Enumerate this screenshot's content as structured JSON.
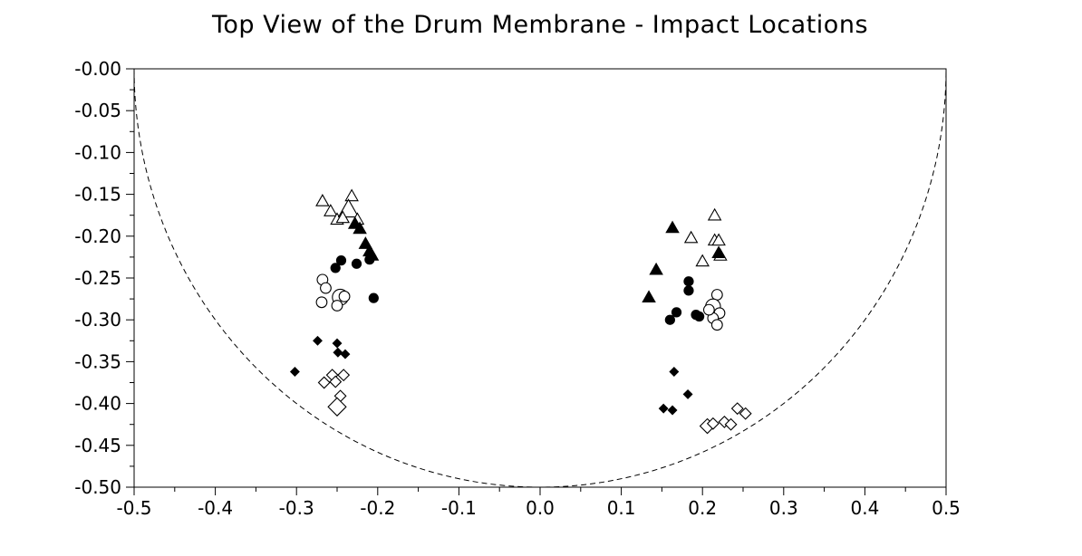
{
  "chart_data": {
    "type": "scatter",
    "title": "Top View of the Drum Membrane - Impact Locations",
    "xlabel": "",
    "ylabel": "",
    "xlim": [
      -0.5,
      0.5
    ],
    "ylim": [
      -0.5,
      0.0
    ],
    "grid": false,
    "x_ticks": [
      "-0.5",
      "-0.4",
      "-0.3",
      "-0.2",
      "-0.1",
      "0.0",
      "0.1",
      "0.2",
      "0.3",
      "0.4",
      "0.5"
    ],
    "y_ticks": [
      "-0.00",
      "-0.05",
      "-0.10",
      "-0.15",
      "-0.20",
      "-0.25",
      "-0.30",
      "-0.35",
      "-0.40",
      "-0.45",
      "-0.50"
    ],
    "boundary": {
      "shape": "semicircle",
      "center": [
        0,
        0
      ],
      "radius": 0.5,
      "style": "dashed"
    },
    "series": [
      {
        "marker": "triangle-open",
        "color": "#000000",
        "points": [
          {
            "x": -0.268,
            "y": -0.158,
            "s": 1
          },
          {
            "x": -0.258,
            "y": -0.17,
            "s": 1
          },
          {
            "x": -0.25,
            "y": -0.18,
            "s": 1
          },
          {
            "x": -0.232,
            "y": -0.152,
            "s": 1
          },
          {
            "x": -0.236,
            "y": -0.168,
            "s": 1.6
          },
          {
            "x": -0.225,
            "y": -0.18,
            "s": 1
          },
          {
            "x": -0.243,
            "y": -0.178,
            "s": 1
          },
          {
            "x": 0.215,
            "y": -0.175,
            "s": 1
          },
          {
            "x": 0.186,
            "y": -0.202,
            "s": 1
          },
          {
            "x": 0.215,
            "y": -0.205,
            "s": 1
          },
          {
            "x": 0.22,
            "y": -0.205,
            "s": 1
          },
          {
            "x": 0.2,
            "y": -0.23,
            "s": 1
          },
          {
            "x": 0.222,
            "y": -0.223,
            "s": 1
          }
        ]
      },
      {
        "marker": "triangle-filled",
        "color": "#000000",
        "points": [
          {
            "x": -0.228,
            "y": -0.185,
            "s": 1
          },
          {
            "x": -0.222,
            "y": -0.191,
            "s": 1
          },
          {
            "x": -0.215,
            "y": -0.209,
            "s": 1
          },
          {
            "x": -0.21,
            "y": -0.218,
            "s": 1
          },
          {
            "x": -0.207,
            "y": -0.223,
            "s": 1
          },
          {
            "x": 0.163,
            "y": -0.19,
            "s": 1
          },
          {
            "x": 0.143,
            "y": -0.24,
            "s": 1
          },
          {
            "x": 0.134,
            "y": -0.273,
            "s": 1
          },
          {
            "x": 0.22,
            "y": -0.22,
            "s": 1
          }
        ]
      },
      {
        "marker": "circle-filled",
        "color": "#000000",
        "points": [
          {
            "x": -0.245,
            "y": -0.229,
            "s": 1
          },
          {
            "x": -0.252,
            "y": -0.238,
            "s": 1
          },
          {
            "x": -0.226,
            "y": -0.233,
            "s": 1
          },
          {
            "x": -0.21,
            "y": -0.228,
            "s": 1
          },
          {
            "x": -0.205,
            "y": -0.274,
            "s": 1
          },
          {
            "x": 0.183,
            "y": -0.254,
            "s": 1
          },
          {
            "x": 0.183,
            "y": -0.265,
            "s": 1
          },
          {
            "x": 0.168,
            "y": -0.291,
            "s": 1
          },
          {
            "x": 0.16,
            "y": -0.3,
            "s": 1
          },
          {
            "x": 0.192,
            "y": -0.294,
            "s": 1
          },
          {
            "x": 0.196,
            "y": -0.296,
            "s": 1
          }
        ]
      },
      {
        "marker": "circle-open",
        "color": "#000000",
        "points": [
          {
            "x": -0.268,
            "y": -0.252,
            "s": 1
          },
          {
            "x": -0.264,
            "y": -0.262,
            "s": 1
          },
          {
            "x": -0.269,
            "y": -0.279,
            "s": 1
          },
          {
            "x": -0.246,
            "y": -0.273,
            "s": 1.5
          },
          {
            "x": -0.25,
            "y": -0.283,
            "s": 1
          },
          {
            "x": -0.241,
            "y": -0.272,
            "s": 1
          },
          {
            "x": 0.218,
            "y": -0.27,
            "s": 1
          },
          {
            "x": 0.213,
            "y": -0.284,
            "s": 1.4
          },
          {
            "x": 0.221,
            "y": -0.292,
            "s": 1
          },
          {
            "x": 0.213,
            "y": -0.298,
            "s": 1
          },
          {
            "x": 0.218,
            "y": -0.306,
            "s": 1
          },
          {
            "x": 0.208,
            "y": -0.288,
            "s": 1
          }
        ]
      },
      {
        "marker": "diamond-filled",
        "color": "#000000",
        "points": [
          {
            "x": -0.302,
            "y": -0.362,
            "s": 1
          },
          {
            "x": -0.274,
            "y": -0.325,
            "s": 1
          },
          {
            "x": -0.25,
            "y": -0.328,
            "s": 1
          },
          {
            "x": -0.249,
            "y": -0.339,
            "s": 1
          },
          {
            "x": -0.24,
            "y": -0.341,
            "s": 1
          },
          {
            "x": 0.165,
            "y": -0.362,
            "s": 1
          },
          {
            "x": 0.182,
            "y": -0.389,
            "s": 1
          },
          {
            "x": 0.152,
            "y": -0.406,
            "s": 1
          },
          {
            "x": 0.163,
            "y": -0.408,
            "s": 1
          }
        ]
      },
      {
        "marker": "diamond-open",
        "color": "#000000",
        "points": [
          {
            "x": -0.266,
            "y": -0.375,
            "s": 1
          },
          {
            "x": -0.256,
            "y": -0.366,
            "s": 1
          },
          {
            "x": -0.242,
            "y": -0.366,
            "s": 1
          },
          {
            "x": -0.252,
            "y": -0.374,
            "s": 1
          },
          {
            "x": -0.246,
            "y": -0.391,
            "s": 1
          },
          {
            "x": -0.25,
            "y": -0.404,
            "s": 1.6
          },
          {
            "x": 0.206,
            "y": -0.427,
            "s": 1.3
          },
          {
            "x": 0.213,
            "y": -0.424,
            "s": 1
          },
          {
            "x": 0.227,
            "y": -0.422,
            "s": 1
          },
          {
            "x": 0.235,
            "y": -0.425,
            "s": 1
          },
          {
            "x": 0.243,
            "y": -0.406,
            "s": 1
          },
          {
            "x": 0.253,
            "y": -0.412,
            "s": 1
          }
        ]
      }
    ]
  }
}
